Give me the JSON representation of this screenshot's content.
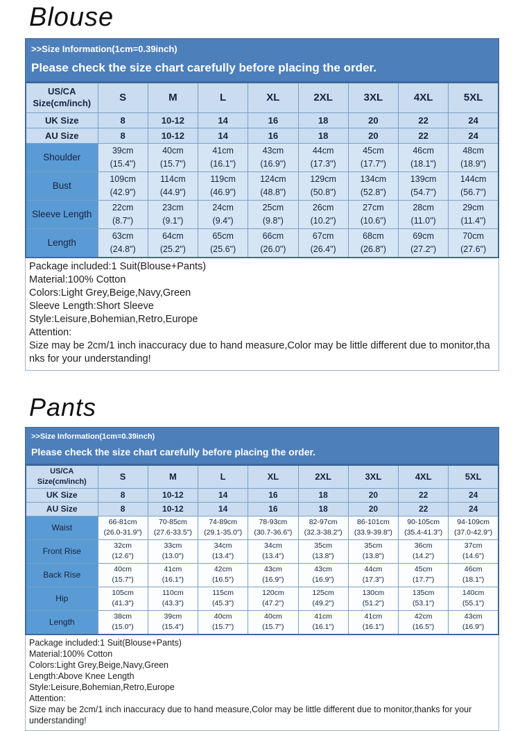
{
  "colors": {
    "header_bar_blue": "#4d7fba",
    "table_light_blue": "#c9dcf0",
    "row_label_blue": "#5b9bd5",
    "blouse_data_cell_blue": "#d6e5f4",
    "pants_data_cell_white": "#fbfdff"
  },
  "blouse": {
    "title": "Blouse",
    "info_line1": ">>Size Information(1cm=0.39inch)",
    "info_line2": "Please check the size chart carefully before placing the order.",
    "table": {
      "corner_line1": "US/CA",
      "corner_line2": "Size(cm/inch)",
      "sizes": [
        "S",
        "M",
        "L",
        "XL",
        "2XL",
        "3XL",
        "4XL",
        "5XL"
      ],
      "size_rows": [
        {
          "label": "UK Size",
          "values": [
            "8",
            "10-12",
            "14",
            "16",
            "18",
            "20",
            "22",
            "24"
          ]
        },
        {
          "label": "AU Size",
          "values": [
            "8",
            "10-12",
            "14",
            "16",
            "18",
            "20",
            "22",
            "24"
          ]
        }
      ],
      "measure_rows": [
        {
          "label": "Shoulder",
          "cm": [
            "39cm",
            "40cm",
            "41cm",
            "43cm",
            "44cm",
            "45cm",
            "46cm",
            "48cm"
          ],
          "inch": [
            "(15.4\")",
            "(15.7\")",
            "(16.1\")",
            "(16.9\")",
            "(17.3\")",
            "(17.7\")",
            "(18.1\")",
            "(18.9\")"
          ]
        },
        {
          "label": "Bust",
          "cm": [
            "109cm",
            "114cm",
            "119cm",
            "124cm",
            "129cm",
            "134cm",
            "139cm",
            "144cm"
          ],
          "inch": [
            "(42.9\")",
            "(44.9\")",
            "(46.9\")",
            "(48.8\")",
            "(50.8\")",
            "(52.8\")",
            "(54.7\")",
            "(56.7\")"
          ]
        },
        {
          "label": "Sleeve Length",
          "cm": [
            "22cm",
            "23cm",
            "24cm",
            "25cm",
            "26cm",
            "27cm",
            "28cm",
            "29cm"
          ],
          "inch": [
            "(8.7\")",
            "(9.1\")",
            "(9.4\")",
            "(9.8\")",
            "(10.2\")",
            "(10.6\")",
            "(11.0\")",
            "(11.4\")"
          ]
        },
        {
          "label": "Length",
          "cm": [
            "63cm",
            "64cm",
            "65cm",
            "66cm",
            "67cm",
            "68cm",
            "69cm",
            "70cm"
          ],
          "inch": [
            "(24.8\")",
            "(25.2\")",
            "(25.6\")",
            "(26.0\")",
            "(26.4\")",
            "(26.8\")",
            "(27.2\")",
            "(27.6\")"
          ]
        }
      ]
    },
    "notes": [
      "Package included:1 Suit(Blouse+Pants)",
      "Material:100% Cotton",
      "Colors:Light Grey,Beige,Navy,Green",
      "Sleeve Length:Short Sleeve",
      "Style:Leisure,Bohemian,Retro,Europe",
      "Attention:",
      "Size may be 2cm/1 inch inaccuracy due to hand measure,Color may be little different due to monitor,thanks for your understanding!"
    ]
  },
  "pants": {
    "title": "Pants",
    "info_line1": ">>Size Information(1cm=0.39inch)",
    "info_line2": "Please check the size chart carefully before placing the order.",
    "table": {
      "corner_line1": "US/CA",
      "corner_line2": "Size(cm/inch)",
      "sizes": [
        "S",
        "M",
        "L",
        "XL",
        "2XL",
        "3XL",
        "4XL",
        "5XL"
      ],
      "size_rows": [
        {
          "label": "UK Size",
          "values": [
            "8",
            "10-12",
            "14",
            "16",
            "18",
            "20",
            "22",
            "24"
          ]
        },
        {
          "label": "AU Size",
          "values": [
            "8",
            "10-12",
            "14",
            "16",
            "18",
            "20",
            "22",
            "24"
          ]
        }
      ],
      "measure_rows": [
        {
          "label": "Waist",
          "cm": [
            "66-81cm",
            "70-85cm",
            "74-89cm",
            "78-93cm",
            "82-97cm",
            "86-101cm",
            "90-105cm",
            "94-109cm"
          ],
          "inch": [
            "(26.0-31.9\")",
            "(27.6-33.5\")",
            "(29.1-35.0\")",
            "(30.7-36.6\")",
            "(32.3-38.2\")",
            "(33.9-39.8\")",
            "(35.4-41.3\")",
            "(37.0-42.9\")"
          ]
        },
        {
          "label": "Front Rise",
          "cm": [
            "32cm",
            "33cm",
            "34cm",
            "34cm",
            "35cm",
            "35cm",
            "36cm",
            "37cm"
          ],
          "inch": [
            "(12.6\")",
            "(13.0\")",
            "(13.4\")",
            "(13.4\")",
            "(13.8\")",
            "(13.8\")",
            "(14.2\")",
            "(14.6\")"
          ]
        },
        {
          "label": "Back Rise",
          "cm": [
            "40cm",
            "41cm",
            "42cm",
            "43cm",
            "43cm",
            "44cm",
            "45cm",
            "46cm"
          ],
          "inch": [
            "(15.7\")",
            "(16.1\")",
            "(16.5\")",
            "(16.9\")",
            "(16.9\")",
            "(17.3\")",
            "(17.7\")",
            "(18.1\")"
          ]
        },
        {
          "label": "Hip",
          "cm": [
            "105cm",
            "110cm",
            "115cm",
            "120cm",
            "125cm",
            "130cm",
            "135cm",
            "140cm"
          ],
          "inch": [
            "(41.3\")",
            "(43.3\")",
            "(45.3\")",
            "(47.2\")",
            "(49.2\")",
            "(51.2\")",
            "(53.1\")",
            "(55.1\")"
          ]
        },
        {
          "label": "Length",
          "cm": [
            "38cm",
            "39cm",
            "40cm",
            "40cm",
            "41cm",
            "41cm",
            "42cm",
            "43cm"
          ],
          "inch": [
            "(15.0\")",
            "(15.4\")",
            "(15.7\")",
            "(15.7\")",
            "(16.1\")",
            "(16.1\")",
            "(16.5\")",
            "(16.9\")"
          ]
        }
      ]
    },
    "notes": [
      "Package included:1 Suit(Blouse+Pants)",
      "Material:100% Cotton",
      "Colors:Light Grey,Beige,Navy,Green",
      "Length:Above Knee Length",
      "Style:Leisure,Bohemian,Retro,Europe",
      "Attention:",
      "Size may be 2cm/1 inch inaccuracy due to hand measure,Color may be little different due to monitor,thanks for your understanding!"
    ]
  }
}
